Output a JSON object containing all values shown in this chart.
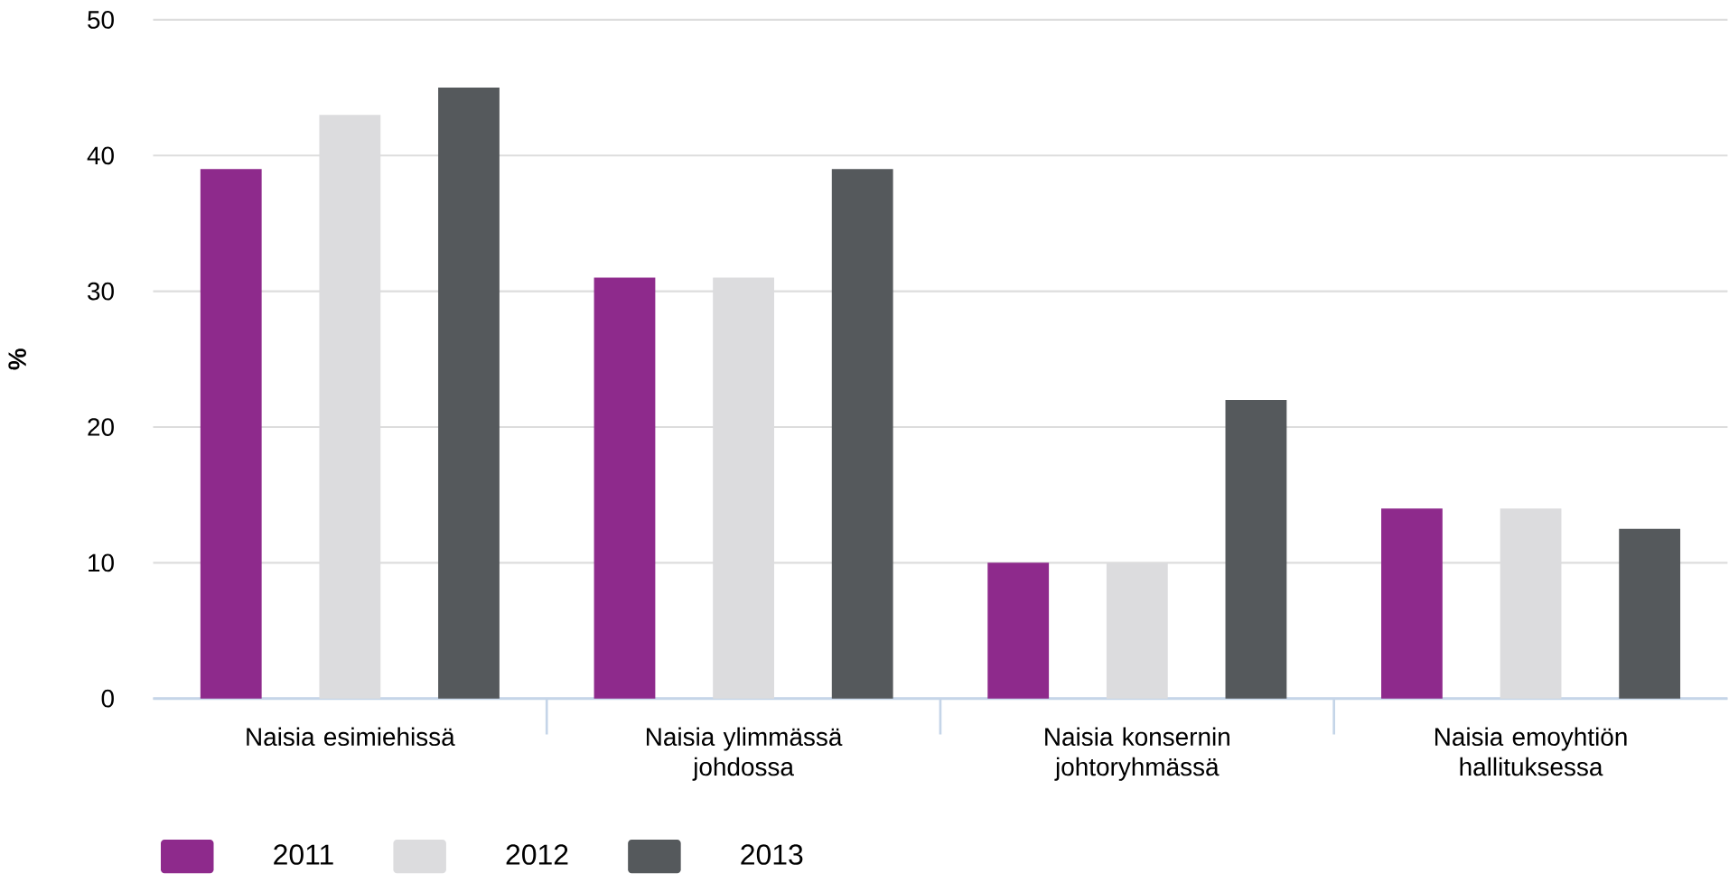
{
  "chart_data": {
    "type": "bar",
    "ylabel": "%",
    "categories": [
      "Naisia esimiehissä",
      "Naisia ylimmässä johdossa",
      "Naisia konsernin johtoryhmässä",
      "Naisia emoyhtiön hallituksessa"
    ],
    "series": [
      {
        "name": "2011",
        "color": "#8e2a8c",
        "values": [
          39,
          31,
          10,
          14
        ]
      },
      {
        "name": "2012",
        "color": "#dcdcde",
        "values": [
          43,
          31,
          10,
          14
        ]
      },
      {
        "name": "2013",
        "color": "#55595c",
        "values": [
          45,
          39,
          22,
          12.5
        ]
      }
    ],
    "ylim": [
      0,
      50
    ],
    "yticks": [
      0,
      10,
      20,
      30,
      40,
      50
    ],
    "grid": "y",
    "legend": "bottom left"
  }
}
